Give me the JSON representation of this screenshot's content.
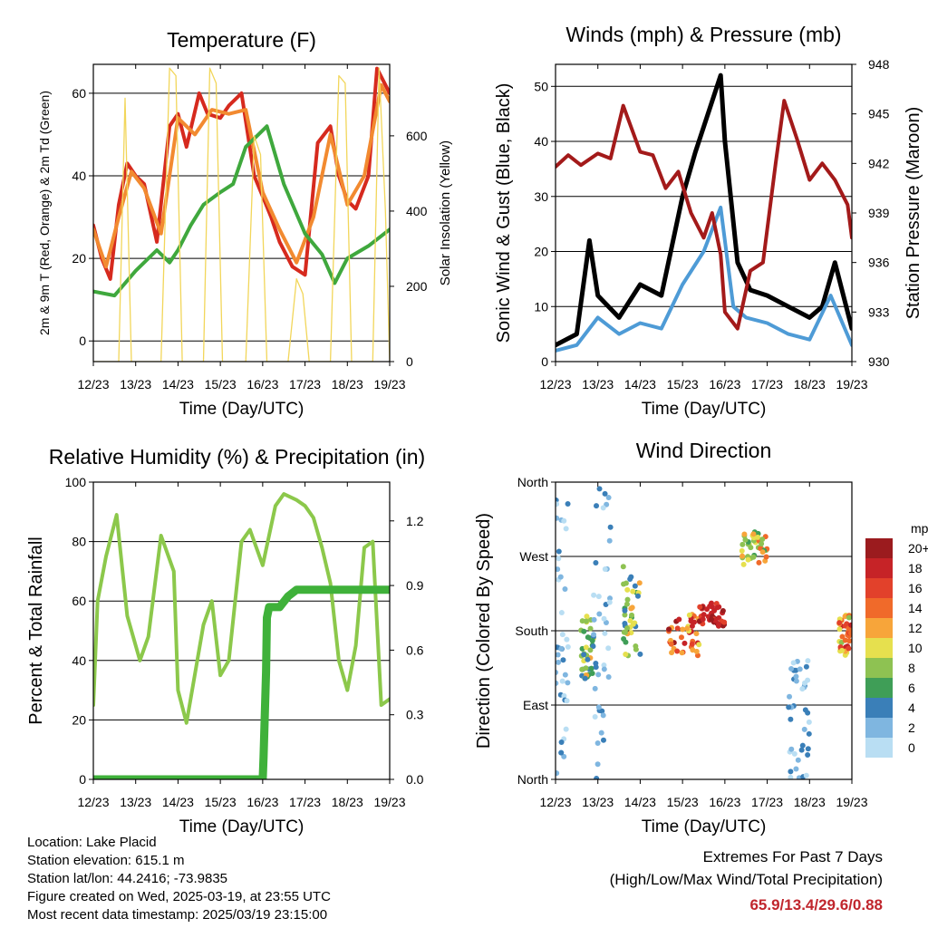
{
  "chart_data": [
    {
      "type": "line",
      "title": "Temperature (F)",
      "xlabel": "Time (Day/UTC)",
      "ylabel": "2m & 9m T (Red, Orange) & 2m Td (Green)",
      "y2label": "Solar Insolation (Yellow)",
      "ylim": [
        -5,
        67
      ],
      "yticks": [
        0,
        20,
        40,
        60
      ],
      "y2lim": [
        0,
        790
      ],
      "y2ticks": [
        0,
        200,
        400,
        600
      ],
      "x_tick_labels": [
        "12/23",
        "13/23",
        "14/23",
        "15/23",
        "16/23",
        "17/23",
        "18/23",
        "19/23"
      ],
      "grid": "horizontal",
      "series": [
        {
          "color": "#d62a1e",
          "axis": "left",
          "x": [
            0,
            0.2,
            0.4,
            0.6,
            0.8,
            1.0,
            1.2,
            1.5,
            1.8,
            2.0,
            2.2,
            2.5,
            2.7,
            3.0,
            3.2,
            3.5,
            3.8,
            4.0,
            4.2,
            4.4,
            4.7,
            5.0,
            5.3,
            5.6,
            5.8,
            6.0,
            6.2,
            6.5,
            6.7,
            7.0
          ],
          "y": [
            28,
            20,
            15,
            33,
            43,
            40,
            38,
            24,
            52,
            55,
            47,
            60,
            55,
            54,
            57,
            60,
            40,
            35,
            30,
            24,
            18,
            16,
            48,
            52,
            40,
            34,
            32,
            40,
            66,
            60
          ]
        },
        {
          "color": "#f28a30",
          "axis": "left",
          "x": [
            0,
            0.3,
            0.6,
            0.9,
            1.2,
            1.6,
            2.0,
            2.4,
            2.8,
            3.2,
            3.6,
            4.0,
            4.4,
            4.8,
            5.2,
            5.6,
            6.0,
            6.4,
            6.8,
            7.0
          ],
          "y": [
            27,
            18,
            30,
            41,
            37,
            26,
            54,
            50,
            56,
            55,
            56,
            36,
            27,
            19,
            30,
            50,
            33,
            40,
            62,
            58
          ]
        },
        {
          "color": "#3fa83d",
          "axis": "left",
          "x": [
            0,
            0.5,
            1.0,
            1.5,
            1.8,
            2.0,
            2.3,
            2.6,
            3.0,
            3.3,
            3.6,
            3.9,
            4.1,
            4.5,
            5.0,
            5.4,
            5.7,
            6.0,
            6.5,
            7.0
          ],
          "y": [
            12,
            11,
            17,
            22,
            19,
            22,
            28,
            33,
            36,
            38,
            47,
            50,
            52,
            38,
            26,
            21,
            14,
            20,
            23,
            27
          ]
        },
        {
          "color": "#f2d65a",
          "axis": "right",
          "x": [
            0,
            0.6,
            0.75,
            0.9,
            1.6,
            1.8,
            1.95,
            2.1,
            2.6,
            2.75,
            2.9,
            3.05,
            3.6,
            3.8,
            3.95,
            4.1,
            4.6,
            4.8,
            4.95,
            5.1,
            5.6,
            5.8,
            5.95,
            6.1,
            6.6,
            6.75,
            6.9,
            7.0
          ],
          "y": [
            0,
            0,
            700,
            0,
            0,
            780,
            760,
            0,
            0,
            780,
            740,
            0,
            0,
            600,
            550,
            0,
            0,
            220,
            180,
            0,
            0,
            760,
            740,
            0,
            0,
            780,
            400,
            0
          ]
        }
      ]
    },
    {
      "type": "line",
      "title": "Winds (mph) & Pressure (mb)",
      "xlabel": "Time (Day/UTC)",
      "ylabel": "Sonic Wind & Gust (Blue, Black)",
      "y2label": "Station Pressure (Maroon)",
      "ylim": [
        0,
        54
      ],
      "yticks": [
        0,
        10,
        20,
        30,
        40,
        50
      ],
      "y2lim": [
        930,
        948
      ],
      "y2ticks": [
        930,
        933,
        936,
        939,
        942,
        945,
        948
      ],
      "x_tick_labels": [
        "12/23",
        "13/23",
        "14/23",
        "15/23",
        "16/23",
        "17/23",
        "18/23",
        "19/23"
      ],
      "grid": "horizontal",
      "series": [
        {
          "color": "#000000",
          "axis": "left",
          "x": [
            0,
            0.5,
            0.8,
            1.0,
            1.5,
            2.0,
            2.5,
            3.0,
            3.3,
            3.6,
            3.9,
            4.0,
            4.3,
            4.6,
            5.0,
            5.5,
            6.0,
            6.3,
            6.6,
            7.0
          ],
          "y": [
            3,
            5,
            22,
            12,
            8,
            14,
            12,
            30,
            38,
            45,
            52,
            40,
            18,
            13,
            12,
            10,
            8,
            10,
            18,
            6
          ]
        },
        {
          "color": "#4e9bd6",
          "axis": "left",
          "x": [
            0,
            0.5,
            1.0,
            1.5,
            2.0,
            2.5,
            3.0,
            3.5,
            3.9,
            4.2,
            4.5,
            5.0,
            5.5,
            6.0,
            6.5,
            7.0
          ],
          "y": [
            2,
            3,
            8,
            5,
            7,
            6,
            14,
            20,
            28,
            10,
            8,
            7,
            5,
            4,
            12,
            3
          ]
        },
        {
          "color": "#a31a1a",
          "axis": "right",
          "x": [
            0,
            0.3,
            0.6,
            1.0,
            1.3,
            1.6,
            2.0,
            2.3,
            2.6,
            2.9,
            3.2,
            3.5,
            3.7,
            3.9,
            4.0,
            4.3,
            4.6,
            4.9,
            5.2,
            5.4,
            5.7,
            6.0,
            6.3,
            6.6,
            6.9,
            7.0
          ],
          "y": [
            941.8,
            942.5,
            941.9,
            942.6,
            942.3,
            945.5,
            942.7,
            942.5,
            940.5,
            941.5,
            939.0,
            937.5,
            939.0,
            936.5,
            933.0,
            932.0,
            935.5,
            936.0,
            942.0,
            945.8,
            943.5,
            941.0,
            942.0,
            941.0,
            939.5,
            937.5
          ]
        }
      ]
    },
    {
      "type": "line",
      "title": "Relative Humidity (%) & Precipitation (in)",
      "xlabel": "Time (Day/UTC)",
      "ylabel": "Percent & Total Rainfall",
      "ylim": [
        0,
        100
      ],
      "yticks": [
        0,
        20,
        40,
        60,
        80,
        100
      ],
      "y2lim": [
        0,
        1.38
      ],
      "y2ticks": [
        0.0,
        0.3,
        0.6,
        0.9,
        1.2
      ],
      "y2tick_labels": [
        "0.0",
        "0.3",
        "0.6",
        "0.9",
        "1.2"
      ],
      "x_tick_labels": [
        "12/23",
        "13/23",
        "14/23",
        "15/23",
        "16/23",
        "17/23",
        "18/23",
        "19/23"
      ],
      "grid": "horizontal",
      "series": [
        {
          "color": "#8cc84b",
          "axis": "left",
          "x": [
            0,
            0.1,
            0.3,
            0.55,
            0.8,
            1.1,
            1.3,
            1.6,
            1.9,
            2.0,
            2.2,
            2.6,
            2.8,
            3.0,
            3.2,
            3.5,
            3.7,
            4.0,
            4.3,
            4.5,
            4.8,
            5.0,
            5.2,
            5.4,
            5.6,
            5.8,
            6.0,
            6.2,
            6.4,
            6.6,
            6.8,
            7.0
          ],
          "y": [
            25,
            60,
            75,
            89,
            55,
            40,
            48,
            82,
            70,
            30,
            19,
            52,
            60,
            35,
            40,
            80,
            84,
            72,
            92,
            96,
            94,
            92,
            88,
            78,
            66,
            40,
            30,
            45,
            78,
            80,
            25,
            27
          ]
        },
        {
          "color": "#3fb13a",
          "axis": "right",
          "x": [
            0,
            1.0,
            2.0,
            3.0,
            4.0,
            4.02,
            4.05,
            4.08,
            4.1,
            4.15,
            4.2,
            4.4,
            4.6,
            4.8,
            5.0,
            6.0,
            7.0
          ],
          "y": [
            0,
            0,
            0,
            0,
            0,
            0.1,
            0.3,
            0.5,
            0.75,
            0.8,
            0.8,
            0.8,
            0.85,
            0.88,
            0.88,
            0.88,
            0.88
          ]
        }
      ]
    },
    {
      "type": "scatter",
      "title": "Wind Direction",
      "xlabel": "Time (Day/UTC)",
      "ylabel": "Direction (Colored By Speed)",
      "ylim": [
        0,
        360
      ],
      "yticks": [
        0,
        90,
        180,
        270,
        360
      ],
      "ytick_labels": [
        "North",
        "East",
        "South",
        "West",
        "North"
      ],
      "x_tick_labels": [
        "12/23",
        "13/23",
        "14/23",
        "15/23",
        "16/23",
        "17/23",
        "18/23",
        "19/23"
      ],
      "grid": "horizontal",
      "colorbar": {
        "title": "mph",
        "labels": [
          "20+",
          "18",
          "16",
          "14",
          "12",
          "10",
          "8",
          "6",
          "4",
          "2",
          "0"
        ],
        "colors": [
          "#9b1b1e",
          "#c62327",
          "#e2412b",
          "#f06a2a",
          "#f7a53a",
          "#e6e04e",
          "#8ec252",
          "#3f9e57",
          "#3a7fb8",
          "#7fb6e0",
          "#b9def3"
        ]
      },
      "clusters": [
        {
          "x": [
            0.0,
            0.3
          ],
          "dir": [
            0,
            360
          ],
          "speed": [
            0,
            4
          ]
        },
        {
          "x": [
            0.6,
            0.9
          ],
          "dir": [
            120,
            200
          ],
          "speed": [
            3,
            12
          ]
        },
        {
          "x": [
            0.9,
            1.3
          ],
          "dir": [
            0,
            360
          ],
          "speed": [
            0,
            5
          ]
        },
        {
          "x": [
            1.6,
            2.0
          ],
          "dir": [
            150,
            260
          ],
          "speed": [
            4,
            12
          ]
        },
        {
          "x": [
            2.6,
            3.4
          ],
          "dir": [
            150,
            200
          ],
          "speed": [
            10,
            20
          ]
        },
        {
          "x": [
            3.4,
            4.0
          ],
          "dir": [
            185,
            215
          ],
          "speed": [
            16,
            20
          ]
        },
        {
          "x": [
            4.4,
            5.0
          ],
          "dir": [
            260,
            300
          ],
          "speed": [
            6,
            14
          ]
        },
        {
          "x": [
            5.5,
            6.0
          ],
          "dir": [
            0,
            150
          ],
          "speed": [
            0,
            5
          ]
        },
        {
          "x": [
            6.7,
            7.0
          ],
          "dir": [
            150,
            200
          ],
          "speed": [
            8,
            18
          ]
        }
      ]
    }
  ],
  "station_info": {
    "location": "Location: Lake Placid",
    "elevation": "Station elevation: 615.1 m",
    "latlon": "Station lat/lon: 44.2416; -73.9835",
    "created": "Figure created on Wed, 2025-03-19, at 23:55 UTC",
    "latest": "Most recent data timestamp: 2025/03/19 23:15:00"
  },
  "extremes": {
    "heading": "Extremes For Past 7 Days",
    "subheading": "(High/Low/Max Wind/Total Precipitation)",
    "values": "65.9/13.4/29.6/0.88"
  }
}
